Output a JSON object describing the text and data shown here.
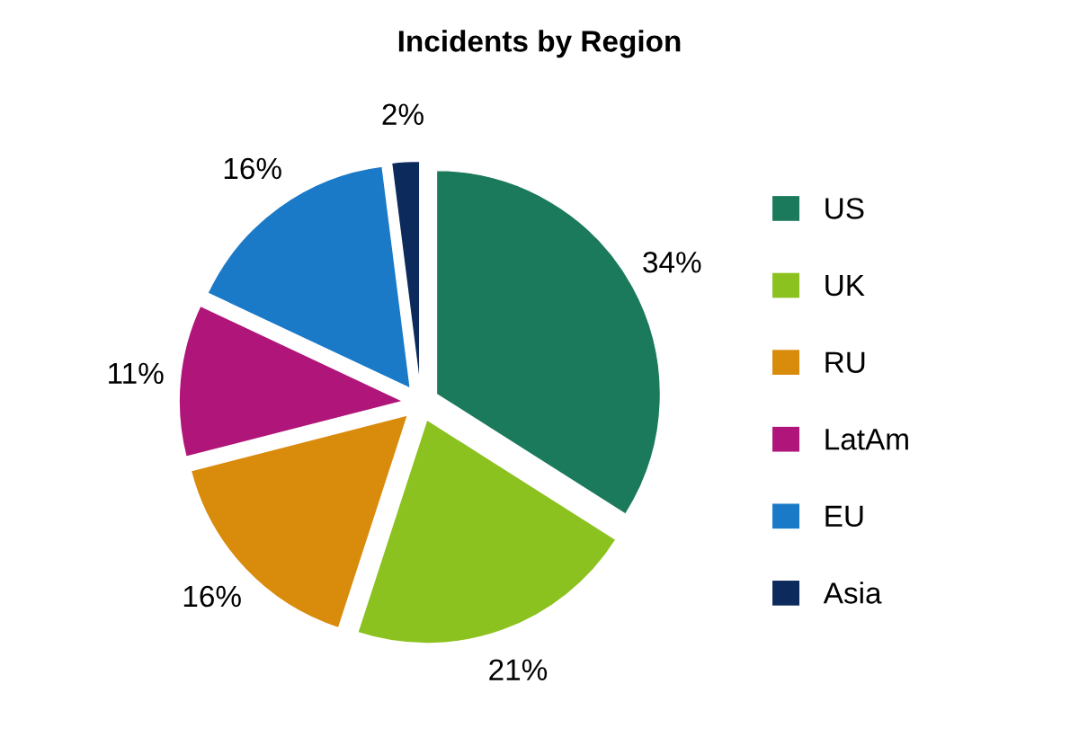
{
  "chart_data": {
    "type": "pie",
    "title": "Incidents by Region",
    "categories": [
      "US",
      "UK",
      "RU",
      "LatAm",
      "EU",
      "Asia"
    ],
    "values": [
      34,
      21,
      16,
      11,
      16,
      2
    ],
    "value_labels": [
      "34%",
      "21%",
      "16%",
      "11%",
      "16%",
      "2%"
    ],
    "colors": [
      "#1b7a5c",
      "#8cc21f",
      "#d98b0b",
      "#b0157a",
      "#1a7ac8",
      "#0d2a5c"
    ],
    "legend": "right"
  }
}
